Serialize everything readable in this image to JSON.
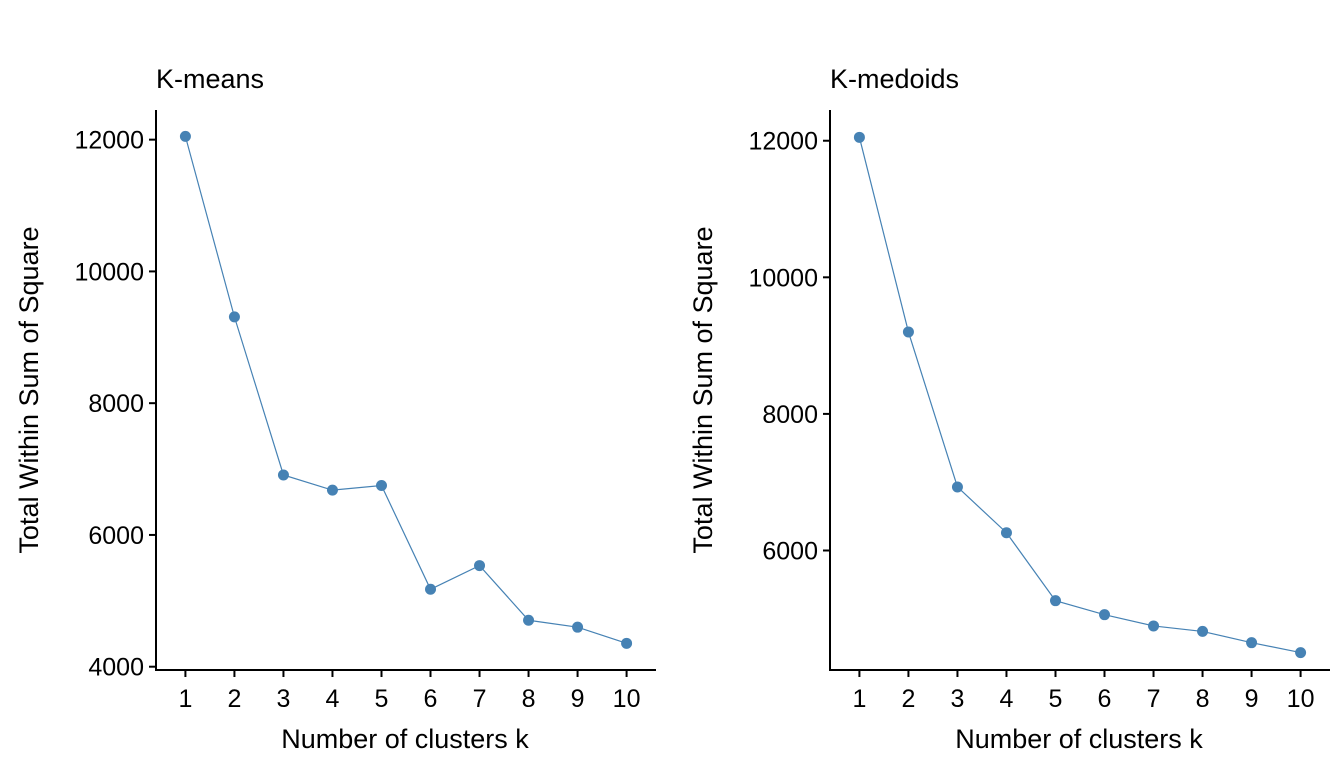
{
  "chart_data": [
    {
      "type": "line",
      "title": "K-means",
      "xlabel": "Number of clusters k",
      "ylabel": "Total Within Sum of Square",
      "x": [
        1,
        2,
        3,
        4,
        5,
        6,
        7,
        8,
        9,
        10
      ],
      "x_tick_labels": [
        "1",
        "2",
        "3",
        "4",
        "5",
        "6",
        "7",
        "8",
        "9",
        "10"
      ],
      "values": [
        12050,
        9310,
        6910,
        6680,
        6750,
        5175,
        5535,
        4705,
        4600,
        4355
      ],
      "ylim": [
        3950,
        12450
      ],
      "y_ticks": [
        4000,
        6000,
        8000,
        10000,
        12000
      ],
      "y_tick_labels": [
        "4000",
        "6000",
        "8000",
        "10000",
        "12000"
      ],
      "grid": false,
      "legend": "none",
      "color": "#4682b4"
    },
    {
      "type": "line",
      "title": "K-medoids",
      "xlabel": "Number of clusters k",
      "ylabel": "Total Within Sum of Square",
      "x": [
        1,
        2,
        3,
        4,
        5,
        6,
        7,
        8,
        9,
        10
      ],
      "x_tick_labels": [
        "1",
        "2",
        "3",
        "4",
        "5",
        "6",
        "7",
        "8",
        "9",
        "10"
      ],
      "values": [
        12050,
        9200,
        6930,
        6260,
        5265,
        5060,
        4895,
        4815,
        4650,
        4505
      ],
      "ylim": [
        4250,
        12450
      ],
      "y_ticks": [
        6000,
        8000,
        10000,
        12000
      ],
      "y_tick_labels": [
        "6000",
        "8000",
        "10000",
        "12000"
      ],
      "grid": false,
      "legend": "none",
      "color": "#4682b4"
    }
  ]
}
